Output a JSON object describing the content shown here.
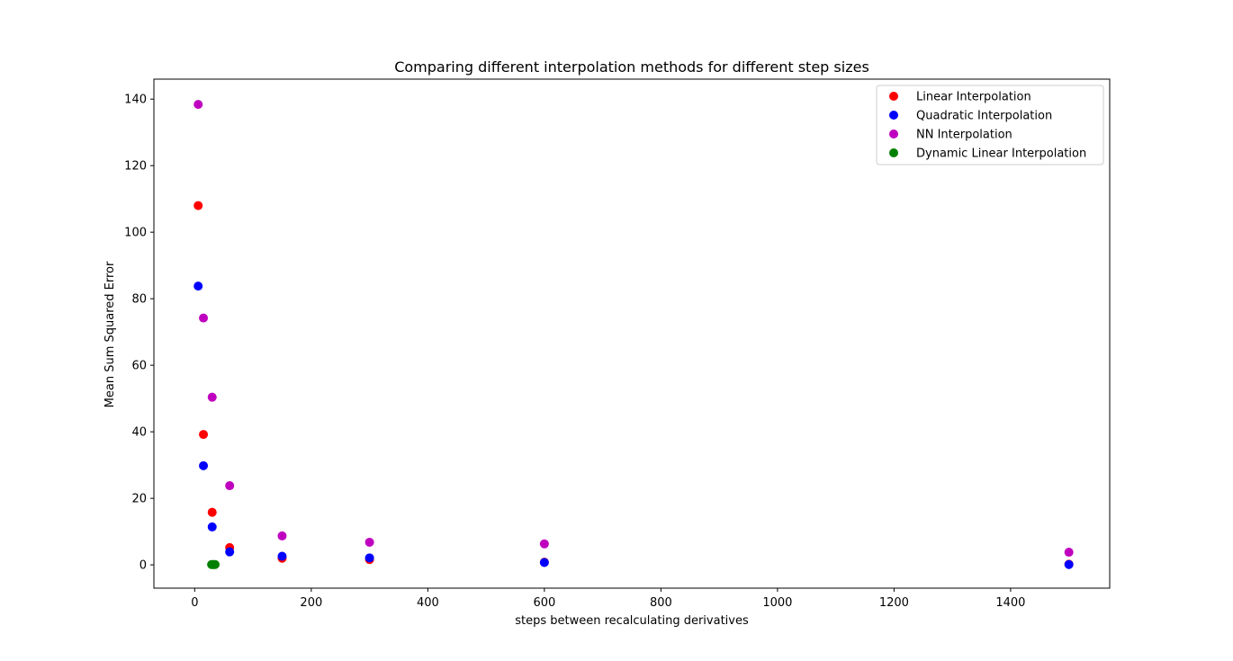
{
  "chart_data": {
    "type": "scatter",
    "title": "Comparing different interpolation methods for different step sizes",
    "xlabel": "steps between recalculating derivatives",
    "ylabel": "Mean Sum Squared Error",
    "xlim": [
      -70,
      1570
    ],
    "ylim": [
      -7,
      146
    ],
    "x_ticks": [
      0,
      200,
      400,
      600,
      800,
      1000,
      1200,
      1400
    ],
    "y_ticks": [
      0,
      20,
      40,
      60,
      80,
      100,
      120,
      140
    ],
    "grid": false,
    "legend_position": "top-right",
    "series": [
      {
        "name": "Linear Interpolation",
        "color": "#ff0000",
        "points": [
          [
            6,
            108
          ],
          [
            15,
            39.2
          ],
          [
            30,
            15.8
          ],
          [
            60,
            5.2
          ],
          [
            150,
            2.0
          ],
          [
            300,
            1.6
          ],
          [
            600,
            0.8
          ],
          [
            1500,
            0.2
          ]
        ]
      },
      {
        "name": "Quadratic Interpolation",
        "color": "#0000ff",
        "points": [
          [
            6,
            83.8
          ],
          [
            15,
            29.8
          ],
          [
            30,
            11.4
          ],
          [
            60,
            3.9
          ],
          [
            150,
            2.6
          ],
          [
            300,
            2.1
          ],
          [
            600,
            0.7
          ],
          [
            1500,
            0.1
          ]
        ]
      },
      {
        "name": "NN Interpolation",
        "color": "#bf00bf",
        "points": [
          [
            6,
            138.4
          ],
          [
            15,
            74.2
          ],
          [
            30,
            50.4
          ],
          [
            60,
            23.8
          ],
          [
            150,
            8.7
          ],
          [
            300,
            6.8
          ],
          [
            600,
            6.3
          ],
          [
            1500,
            3.8
          ]
        ]
      },
      {
        "name": "Dynamic Linear Interpolation",
        "color": "#008000",
        "points": [
          [
            29,
            0.1
          ],
          [
            31,
            0.1
          ],
          [
            33,
            0.1
          ],
          [
            35,
            0.1
          ]
        ]
      }
    ]
  }
}
